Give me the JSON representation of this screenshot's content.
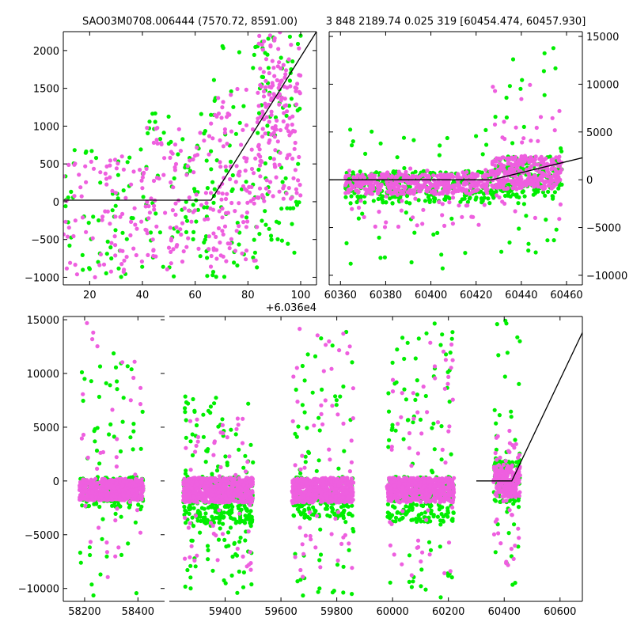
{
  "title_left": "SAO03M0708.006444 (7570.72, 8591.00)",
  "title_right": "3 848 2189.74 0.025 319 [60454.474, 60457.930]",
  "colors": {
    "series_a": "#00ee00",
    "series_b": "#ee5fdf",
    "model": "#000000"
  },
  "chart_data": [
    {
      "id": "zoom-left",
      "type": "scatter",
      "xlim": [
        10,
        106
      ],
      "ylim": [
        -1100,
        2250
      ],
      "x_offset_label": "+6.036e4",
      "xticks": [
        20,
        40,
        60,
        80,
        100
      ],
      "yticks": [
        -1000,
        -500,
        0,
        500,
        1000,
        1500,
        2000
      ],
      "model_line": [
        [
          10,
          20
        ],
        [
          66,
          20
        ],
        [
          106,
          2250
        ]
      ],
      "series": [
        {
          "color_key": "series_a",
          "clusters": [
            {
              "x": [
                10,
                40
              ],
              "y": [
                -1000,
                700
              ],
              "n": 55
            },
            {
              "x": [
                40,
                66
              ],
              "y": [
                -1000,
                1300
              ],
              "n": 75
            },
            {
              "x": [
                66,
                84
              ],
              "y": [
                -1000,
                2100
              ],
              "n": 55
            },
            {
              "x": [
                84,
                100
              ],
              "y": [
                -1000,
                2200
              ],
              "n": 80
            }
          ]
        },
        {
          "color_key": "series_b",
          "clusters": [
            {
              "x": [
                10,
                40
              ],
              "y": [
                -1000,
                600
              ],
              "n": 80
            },
            {
              "x": [
                40,
                66
              ],
              "y": [
                -900,
                1000
              ],
              "n": 100
            },
            {
              "x": [
                66,
                84
              ],
              "y": [
                -800,
                1500
              ],
              "n": 110
            },
            {
              "x": [
                84,
                100
              ],
              "y": [
                0,
                2250
              ],
              "n": 160
            }
          ]
        }
      ]
    },
    {
      "id": "zoom-right",
      "type": "scatter",
      "xlim": [
        60355,
        60467
      ],
      "ylim": [
        -11000,
        15500
      ],
      "xticks": [
        60360,
        60380,
        60400,
        60420,
        60440,
        60460
      ],
      "yticks": [
        -10000,
        -5000,
        0,
        5000,
        10000,
        15000
      ],
      "model_line": [
        [
          60355,
          0
        ],
        [
          60427,
          0
        ],
        [
          60467,
          2300
        ]
      ],
      "series": [
        {
          "color_key": "series_a",
          "clusters": [
            {
              "x": [
                60362,
                60427
              ],
              "y": [
                -2500,
                900
              ],
              "n": 300
            },
            {
              "x": [
                60362,
                60427
              ],
              "y": [
                -10000,
                6000
              ],
              "n": 45
            },
            {
              "x": [
                60427,
                60458
              ],
              "y": [
                -2000,
                2500
              ],
              "n": 180
            },
            {
              "x": [
                60427,
                60458
              ],
              "y": [
                -8000,
                15000
              ],
              "n": 40
            }
          ]
        },
        {
          "color_key": "series_b",
          "clusters": [
            {
              "x": [
                60362,
                60427
              ],
              "y": [
                -1500,
                600
              ],
              "n": 380
            },
            {
              "x": [
                60362,
                60427
              ],
              "y": [
                -5000,
                1200
              ],
              "n": 60
            },
            {
              "x": [
                60427,
                60458
              ],
              "y": [
                -1000,
                2500
              ],
              "n": 300
            },
            {
              "x": [
                60427,
                60458
              ],
              "y": [
                -5000,
                10000
              ],
              "n": 30
            }
          ]
        }
      ]
    },
    {
      "id": "full-left",
      "type": "scatter",
      "xlim": [
        58120,
        58500
      ],
      "ylim": [
        -11200,
        15300
      ],
      "xticks": [
        58200,
        58400
      ],
      "yticks": [
        -10000,
        -5000,
        0,
        5000,
        10000,
        15000
      ],
      "model_line": [],
      "series": [
        {
          "color_key": "series_a",
          "clusters": [
            {
              "x": [
                58180,
                58420
              ],
              "y": [
                -2500,
                400
              ],
              "n": 180
            },
            {
              "x": [
                58180,
                58420
              ],
              "y": [
                -10800,
                12000
              ],
              "n": 60
            }
          ]
        },
        {
          "color_key": "series_b",
          "clusters": [
            {
              "x": [
                58180,
                58420
              ],
              "y": [
                -1800,
                200
              ],
              "n": 500
            },
            {
              "x": [
                58180,
                58420
              ],
              "y": [
                -9000,
                15000
              ],
              "n": 40
            }
          ]
        }
      ]
    },
    {
      "id": "full-right",
      "type": "scatter",
      "xlim": [
        59200,
        60680
      ],
      "ylim": [
        -11200,
        15300
      ],
      "xticks": [
        59400,
        59600,
        59800,
        60000,
        60200,
        60400,
        60600
      ],
      "yticks": [],
      "model_line": [
        [
          60300,
          0
        ],
        [
          60427,
          0
        ],
        [
          60680,
          13800
        ]
      ],
      "series": [
        {
          "color_key": "series_a",
          "clusters": [
            {
              "x": [
                59250,
                59500
              ],
              "y": [
                -4000,
                400
              ],
              "n": 250
            },
            {
              "x": [
                59250,
                59500
              ],
              "y": [
                -10900,
                8000
              ],
              "n": 120
            },
            {
              "x": [
                59640,
                59860
              ],
              "y": [
                -3500,
                400
              ],
              "n": 180
            },
            {
              "x": [
                59640,
                59860
              ],
              "y": [
                -10800,
                14000
              ],
              "n": 70
            },
            {
              "x": [
                59980,
                60220
              ],
              "y": [
                -3800,
                400
              ],
              "n": 200
            },
            {
              "x": [
                59980,
                60220
              ],
              "y": [
                -10900,
                15000
              ],
              "n": 80
            },
            {
              "x": [
                60362,
                60457
              ],
              "y": [
                -2000,
                2000
              ],
              "n": 90
            },
            {
              "x": [
                60362,
                60457
              ],
              "y": [
                -10000,
                15000
              ],
              "n": 40
            }
          ]
        },
        {
          "color_key": "series_b",
          "clusters": [
            {
              "x": [
                59250,
                59500
              ],
              "y": [
                -2000,
                300
              ],
              "n": 600
            },
            {
              "x": [
                59250,
                59500
              ],
              "y": [
                -9000,
                6000
              ],
              "n": 60
            },
            {
              "x": [
                59640,
                59860
              ],
              "y": [
                -2000,
                300
              ],
              "n": 500
            },
            {
              "x": [
                59640,
                59860
              ],
              "y": [
                -9000,
                14300
              ],
              "n": 60
            },
            {
              "x": [
                59980,
                60220
              ],
              "y": [
                -2000,
                300
              ],
              "n": 500
            },
            {
              "x": [
                59980,
                60220
              ],
              "y": [
                -9000,
                13000
              ],
              "n": 60
            },
            {
              "x": [
                60362,
                60457
              ],
              "y": [
                -1500,
                1500
              ],
              "n": 180
            },
            {
              "x": [
                60362,
                60457
              ],
              "y": [
                -8000,
                5000
              ],
              "n": 40
            }
          ]
        }
      ]
    }
  ]
}
